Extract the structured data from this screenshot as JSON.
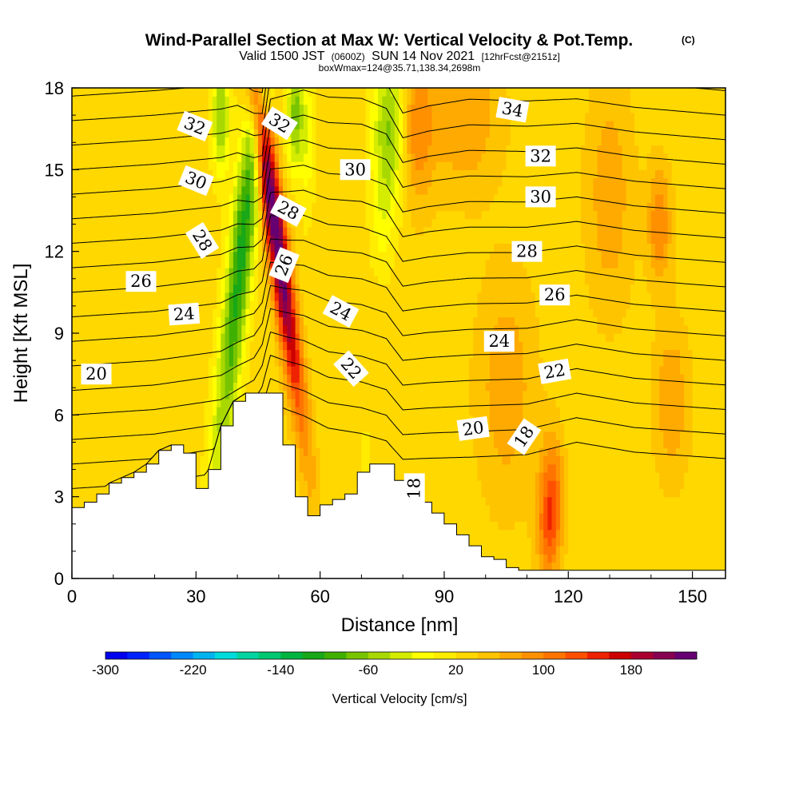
{
  "chart_data": {
    "type": "heatmap",
    "title": "Wind-Parallel Section at Max W: Vertical Velocity & Pot.Temp.",
    "copyright": "(C)",
    "subtitle_parts": [
      "Valid 1500 JST",
      "(0600Z)",
      "SUN 14 Nov 2021",
      "[12hrFcst@2151z]"
    ],
    "subtitle2": "boxWmax=124@35.71,138.34,2698m",
    "xlabel": "Distance [nm]",
    "ylabel": "Height [Kft MSL]",
    "xlim": [
      0,
      158
    ],
    "ylim": [
      0,
      18
    ],
    "xticks": [
      0,
      30,
      60,
      90,
      120,
      150
    ],
    "yticks": [
      0,
      3,
      6,
      9,
      12,
      15,
      18
    ],
    "grid": false,
    "colorbar": {
      "label": "Vertical Velocity [cm/s]",
      "min": -300,
      "max": 220,
      "step": 20,
      "tick_labels": [
        "-300",
        "-220",
        "-140",
        "-60",
        "20",
        "100",
        "180"
      ],
      "tick_values": [
        -300,
        -220,
        -140,
        -60,
        20,
        100,
        180
      ],
      "colors": [
        "#0000ee",
        "#0022ff",
        "#0055ff",
        "#0088ff",
        "#00b4f0",
        "#00dcdc",
        "#00d4a0",
        "#00c870",
        "#00b440",
        "#18a818",
        "#40b000",
        "#78c400",
        "#a8d800",
        "#d4ec00",
        "#ffff00",
        "#ffec00",
        "#ffd800",
        "#ffc400",
        "#ffaa00",
        "#ff9000",
        "#ff7400",
        "#ff5000",
        "#ee2200",
        "#cc0000",
        "#aa0030",
        "#880050",
        "#660070"
      ]
    },
    "w_field": {
      "background": 30,
      "features": [
        {
          "x": 41,
          "y": 12,
          "sx": 2.2,
          "sy": 6,
          "tilt": 0.7,
          "value": -140
        },
        {
          "x": 36,
          "y": 17,
          "sx": 1.6,
          "sy": 1.5,
          "tilt": 0,
          "value": -90
        },
        {
          "x": 49,
          "y": 13,
          "sx": 1.8,
          "sy": 5,
          "tilt": -0.9,
          "value": 220
        },
        {
          "x": 54,
          "y": 17,
          "sx": 1.4,
          "sy": 1.5,
          "tilt": 0,
          "value": -100
        },
        {
          "x": 57,
          "y": 16,
          "sx": 1.2,
          "sy": 2,
          "tilt": 0,
          "value": -40
        },
        {
          "x": 77,
          "y": 16.5,
          "sx": 3,
          "sy": 2,
          "tilt": 0,
          "value": -100
        },
        {
          "x": 75,
          "y": 13,
          "sx": 2,
          "sy": 1.5,
          "tilt": 0,
          "value": -30
        },
        {
          "x": 83,
          "y": 16.5,
          "sx": 3,
          "sy": 2,
          "tilt": 0,
          "value": 70
        },
        {
          "x": 95,
          "y": 17,
          "sx": 6,
          "sy": 2,
          "tilt": 0,
          "value": 50
        },
        {
          "x": 71,
          "y": 4,
          "sx": 1.5,
          "sy": 1.5,
          "tilt": 0,
          "value": -15
        },
        {
          "x": 62,
          "y": 3.8,
          "sx": 1.5,
          "sy": 1.5,
          "tilt": 0,
          "value": -10
        },
        {
          "x": 116,
          "y": 3.2,
          "sx": 2,
          "sy": 1.5,
          "tilt": 0,
          "value": 85
        },
        {
          "x": 115,
          "y": 1.5,
          "sx": 2,
          "sy": 1.2,
          "tilt": 0,
          "value": 60
        },
        {
          "x": 142,
          "y": 13,
          "sx": 2,
          "sy": 1.5,
          "tilt": 0,
          "value": 70
        },
        {
          "x": 145,
          "y": 6.5,
          "sx": 3,
          "sy": 2,
          "tilt": 0,
          "value": 50
        },
        {
          "x": 130,
          "y": 14,
          "sx": 4,
          "sy": 3,
          "tilt": 0,
          "value": 45
        },
        {
          "x": 105,
          "y": 7,
          "sx": 5,
          "sy": 3,
          "tilt": 0,
          "value": 45
        }
      ]
    },
    "terrain": {
      "x": [
        0,
        3,
        6,
        9,
        12,
        15,
        18,
        21,
        24,
        27,
        30,
        33,
        36,
        39,
        42,
        45,
        48,
        51,
        54,
        57,
        60,
        63,
        66,
        69,
        72,
        75,
        78,
        81,
        84,
        87,
        90,
        93,
        96,
        99,
        102,
        105,
        108,
        111,
        114,
        117,
        120,
        123,
        126,
        129,
        132,
        135,
        138,
        141,
        144,
        147,
        150,
        153,
        156,
        158
      ],
      "height_kft": [
        2.6,
        2.8,
        3.1,
        3.5,
        3.7,
        3.9,
        4.2,
        4.7,
        4.9,
        4.6,
        3.3,
        4.0,
        5.6,
        6.5,
        6.8,
        6.8,
        6.8,
        4.9,
        3.0,
        2.3,
        2.7,
        2.9,
        3.1,
        3.9,
        4.2,
        4.2,
        3.6,
        3.3,
        2.8,
        2.4,
        2.0,
        1.6,
        1.2,
        0.8,
        0.7,
        0.4,
        0.3,
        0.3,
        0.3,
        0.3,
        0.3,
        0.3,
        0.3,
        0.3,
        0.3,
        0.3,
        0.3,
        0.3,
        0.3,
        0.3,
        0.3,
        0.3,
        0.3,
        0.3
      ]
    },
    "theta_contours": {
      "levels": [
        18,
        19,
        20,
        21,
        22,
        23,
        24,
        25,
        26,
        27,
        28,
        29,
        30,
        31,
        32,
        33,
        34,
        35
      ],
      "control_x": [
        0,
        20,
        36,
        40,
        44,
        46,
        48,
        52,
        56,
        62,
        70,
        76,
        80,
        86,
        96,
        110,
        122,
        136,
        158
      ],
      "base_height_kft": [
        3.3,
        3.5,
        4.0,
        4.6,
        5.6,
        6.7,
        6.9,
        6.3,
        5.8,
        5.2,
        4.9,
        4.7,
        4.3,
        4.2,
        4.1,
        4.3,
        5.0,
        4.6,
        4.4
      ],
      "dip_kft": [
        0,
        0,
        -0.3,
        -0.8,
        -2.2,
        -3.4,
        -1.2,
        -0.3,
        0.5,
        0.9,
        1.2,
        1.0,
        0.2,
        0.6,
        1.0,
        0.7,
        0,
        0.1,
        0
      ],
      "spacing_kft": 0.9,
      "labels": [
        {
          "text": "32",
          "level": 32,
          "x": 29.7,
          "y": 16.6,
          "rot": 22
        },
        {
          "text": "30",
          "level": 30,
          "x": 30,
          "y": 14.6,
          "rot": 22
        },
        {
          "text": "28",
          "level": 28,
          "x": 31.5,
          "y": 12.4,
          "rot": 58
        },
        {
          "text": "26",
          "level": 26,
          "x": 16.7,
          "y": 10.9,
          "rot": 0
        },
        {
          "text": "24",
          "level": 24,
          "x": 27.1,
          "y": 9.7,
          "rot": -4
        },
        {
          "text": "20",
          "level": 20,
          "x": 5.9,
          "y": 7.5,
          "rot": 0
        },
        {
          "text": "32",
          "level": 32,
          "x": 50.2,
          "y": 16.7,
          "rot": 32
        },
        {
          "text": "28",
          "level": 28,
          "x": 52.3,
          "y": 13.5,
          "rot": 28
        },
        {
          "text": "26",
          "level": 26,
          "x": 51.3,
          "y": 11.5,
          "rot": -68
        },
        {
          "text": "30",
          "level": 30,
          "x": 68.5,
          "y": 15.0,
          "rot": 0
        },
        {
          "text": "24",
          "level": 24,
          "x": 65.0,
          "y": 9.8,
          "rot": 28
        },
        {
          "text": "22",
          "level": 22,
          "x": 67.5,
          "y": 7.7,
          "rot": 48
        },
        {
          "text": "18",
          "level": 18,
          "x": 82.8,
          "y": 3.3,
          "rot": -90
        },
        {
          "text": "34",
          "level": 34,
          "x": 106.5,
          "y": 17.2,
          "rot": 10
        },
        {
          "text": "32",
          "level": 32,
          "x": 113.3,
          "y": 15.5,
          "rot": 0
        },
        {
          "text": "30",
          "level": 30,
          "x": 113.3,
          "y": 14.0,
          "rot": 0
        },
        {
          "text": "28",
          "level": 28,
          "x": 110.0,
          "y": 12.0,
          "rot": 0
        },
        {
          "text": "26",
          "level": 26,
          "x": 116.7,
          "y": 10.4,
          "rot": 0
        },
        {
          "text": "24",
          "level": 24,
          "x": 103.3,
          "y": 8.7,
          "rot": 0
        },
        {
          "text": "22",
          "level": 22,
          "x": 116.7,
          "y": 7.6,
          "rot": -10
        },
        {
          "text": "20",
          "level": 20,
          "x": 97.0,
          "y": 5.5,
          "rot": -8
        },
        {
          "text": "18",
          "level": 18,
          "x": 109.3,
          "y": 5.2,
          "rot": -56
        }
      ]
    }
  }
}
